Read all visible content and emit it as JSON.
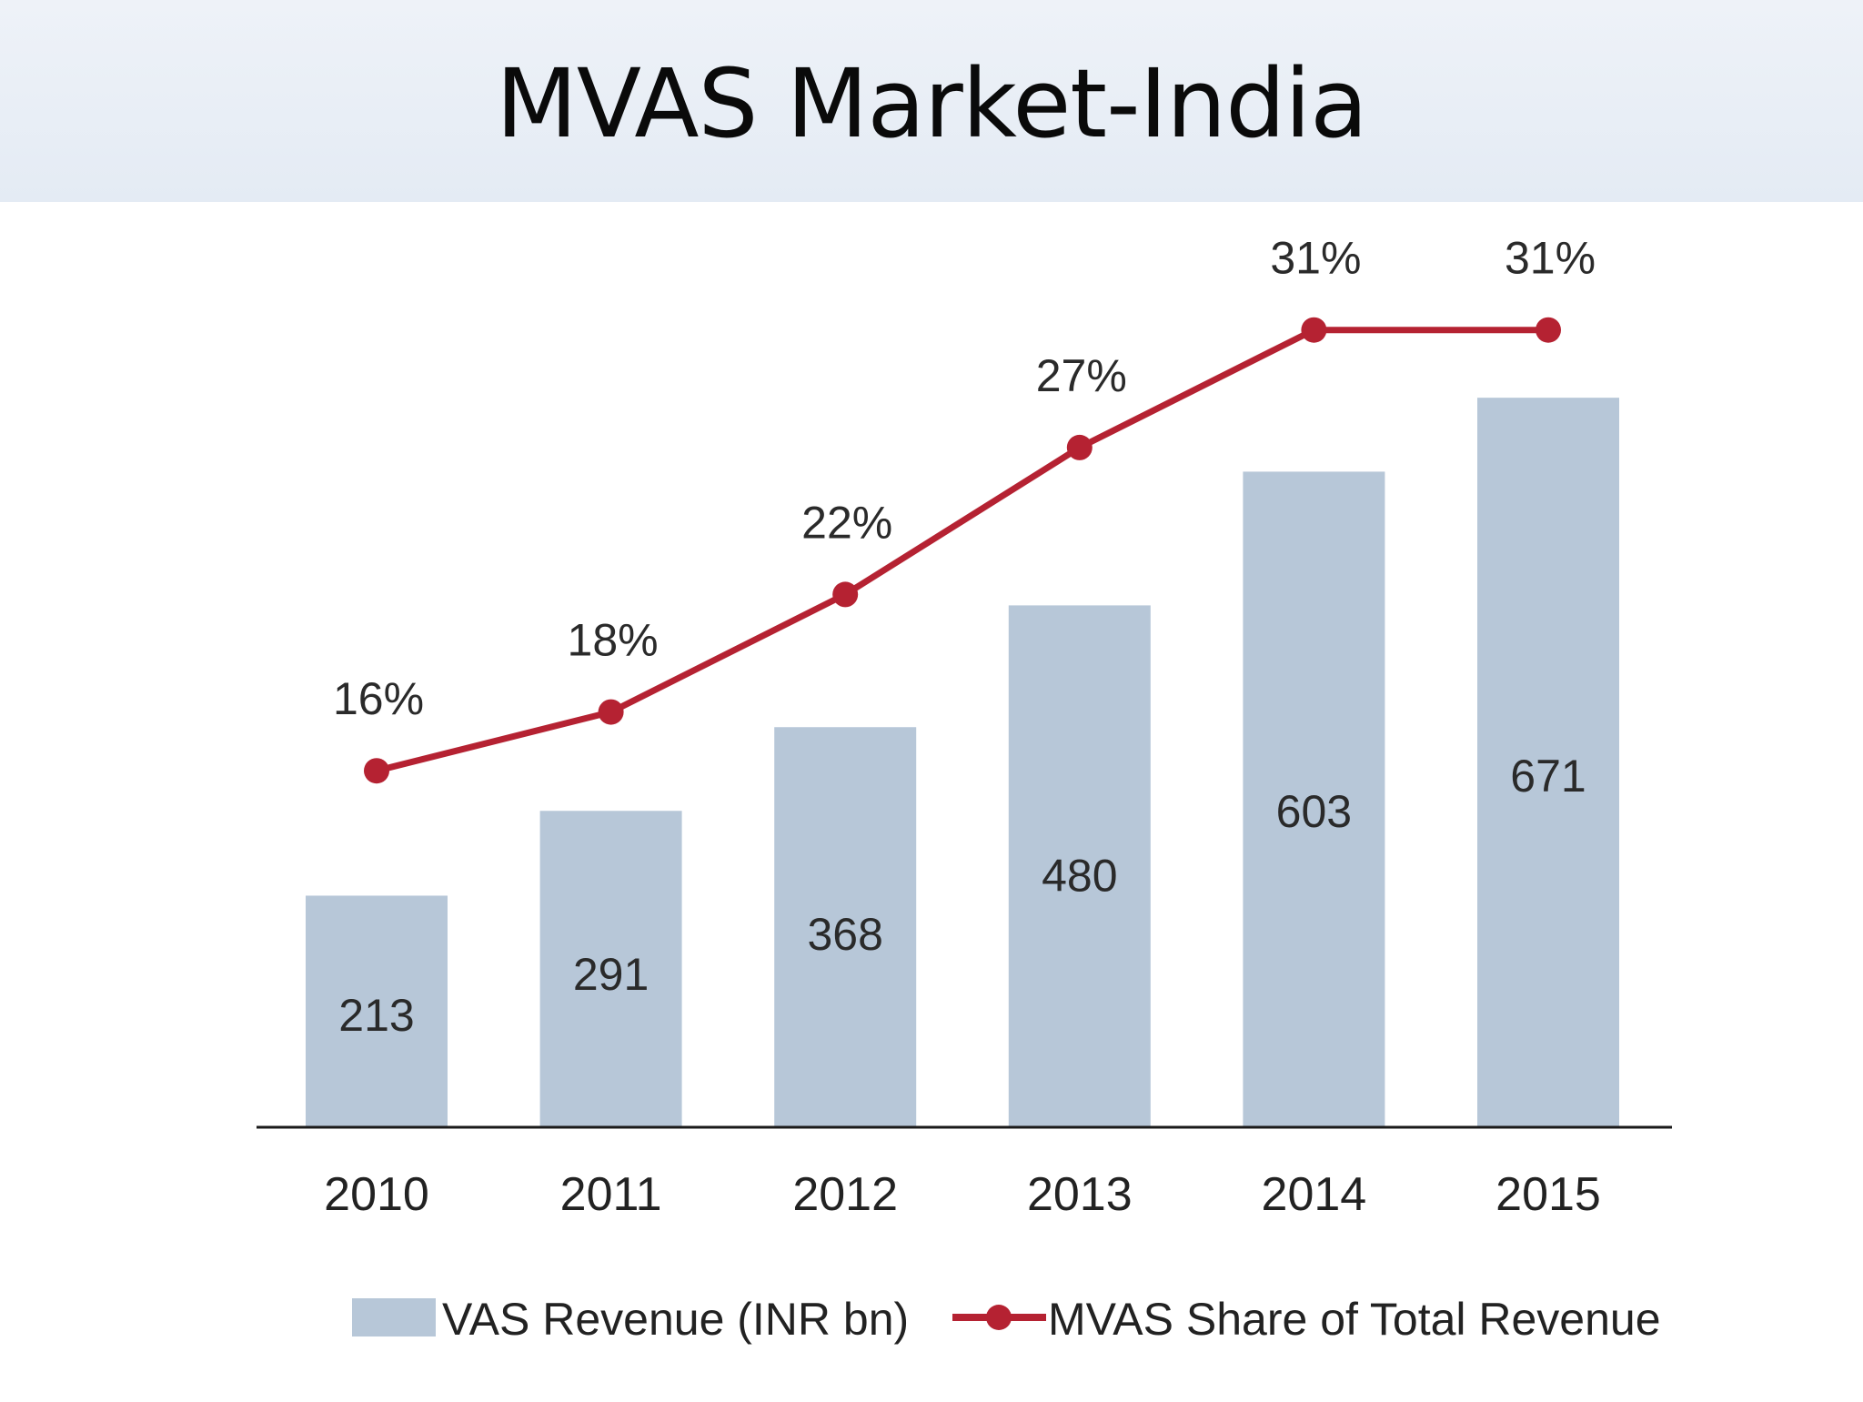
{
  "title": "MVAS Market-India",
  "chart_data": {
    "type": "bar",
    "categories": [
      "2010",
      "2011",
      "2012",
      "2013",
      "2014",
      "2015"
    ],
    "series": [
      {
        "name": "VAS Revenue (INR bn)",
        "type": "bar",
        "values": [
          213,
          291,
          368,
          480,
          603,
          671
        ],
        "labels": [
          "213",
          "291",
          "368",
          "480",
          "603",
          "671"
        ],
        "color": "#b7c7d8"
      },
      {
        "name": "MVAS Share of Total Revenue",
        "type": "line",
        "values": [
          16,
          18,
          22,
          27,
          31,
          31
        ],
        "labels": [
          "16%",
          "18%",
          "22%",
          "27%",
          "31%",
          "31%"
        ],
        "color": "#b52232"
      }
    ],
    "legend": "bottom",
    "grid": false
  }
}
